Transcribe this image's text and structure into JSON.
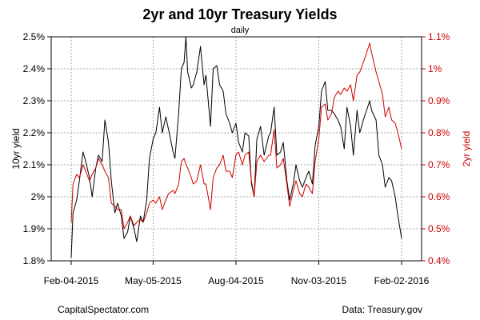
{
  "chart_data": {
    "type": "line",
    "title": "2yr and 10yr Treasury Yields",
    "subtitle": "daily",
    "ylabel_left": "10yr yield",
    "ylabel_right": "2yr yield",
    "ylim_left": [
      1.8,
      2.5
    ],
    "ylim_right": [
      0.4,
      1.1
    ],
    "yticks_left": [
      "1.8%",
      "1.9%",
      "2%",
      "2.1%",
      "2.2%",
      "2.3%",
      "2.4%",
      "2.5%"
    ],
    "yticks_right": [
      "0.4%",
      "0.5%",
      "0.6%",
      "0.7%",
      "0.8%",
      "0.9%",
      "1%",
      "1.1%"
    ],
    "xticks": [
      "Feb-04-2015",
      "May-05-2015",
      "Aug-04-2015",
      "Nov-03-2015",
      "Feb-02-2016"
    ],
    "x_range": [
      "Feb-04-2015",
      "Feb-02-2016"
    ],
    "grid": true,
    "series_colors": {
      "10yr": "#000000",
      "2yr": "#cc0000"
    },
    "series": [
      {
        "name": "10yr yield",
        "axis": "left",
        "color": "#000000",
        "points": [
          [
            "2015-02-04",
            1.81
          ],
          [
            "2015-02-06",
            1.95
          ],
          [
            "2015-02-10",
            1.99
          ],
          [
            "2015-02-13",
            2.05
          ],
          [
            "2015-02-17",
            2.14
          ],
          [
            "2015-02-20",
            2.11
          ],
          [
            "2015-02-24",
            2.06
          ],
          [
            "2015-02-27",
            2.0
          ],
          [
            "2015-03-03",
            2.09
          ],
          [
            "2015-03-06",
            2.13
          ],
          [
            "2015-03-10",
            2.11
          ],
          [
            "2015-03-13",
            2.24
          ],
          [
            "2015-03-17",
            2.17
          ],
          [
            "2015-03-20",
            2.05
          ],
          [
            "2015-03-24",
            1.95
          ],
          [
            "2015-03-27",
            1.98
          ],
          [
            "2015-03-31",
            1.94
          ],
          [
            "2015-04-03",
            1.87
          ],
          [
            "2015-04-07",
            1.89
          ],
          [
            "2015-04-10",
            1.94
          ],
          [
            "2015-04-14",
            1.9
          ],
          [
            "2015-04-17",
            1.86
          ],
          [
            "2015-04-21",
            1.94
          ],
          [
            "2015-04-24",
            1.92
          ],
          [
            "2015-04-28",
            1.99
          ],
          [
            "2015-05-01",
            2.12
          ],
          [
            "2015-05-05",
            2.18
          ],
          [
            "2015-05-08",
            2.2
          ],
          [
            "2015-05-12",
            2.28
          ],
          [
            "2015-05-15",
            2.2
          ],
          [
            "2015-05-19",
            2.25
          ],
          [
            "2015-05-22",
            2.21
          ],
          [
            "2015-05-27",
            2.14
          ],
          [
            "2015-05-29",
            2.12
          ],
          [
            "2015-06-02",
            2.26
          ],
          [
            "2015-06-05",
            2.4
          ],
          [
            "2015-06-08",
            2.42
          ],
          [
            "2015-06-10",
            2.5
          ],
          [
            "2015-06-12",
            2.39
          ],
          [
            "2015-06-16",
            2.34
          ],
          [
            "2015-06-18",
            2.35
          ],
          [
            "2015-06-22",
            2.39
          ],
          [
            "2015-06-26",
            2.47
          ],
          [
            "2015-06-30",
            2.35
          ],
          [
            "2015-07-02",
            2.38
          ],
          [
            "2015-07-07",
            2.22
          ],
          [
            "2015-07-10",
            2.4
          ],
          [
            "2015-07-14",
            2.41
          ],
          [
            "2015-07-17",
            2.35
          ],
          [
            "2015-07-21",
            2.33
          ],
          [
            "2015-07-24",
            2.26
          ],
          [
            "2015-07-28",
            2.23
          ],
          [
            "2015-07-31",
            2.2
          ],
          [
            "2015-08-04",
            2.23
          ],
          [
            "2015-08-07",
            2.17
          ],
          [
            "2015-08-11",
            2.14
          ],
          [
            "2015-08-14",
            2.2
          ],
          [
            "2015-08-18",
            2.19
          ],
          [
            "2015-08-21",
            2.04
          ],
          [
            "2015-08-24",
            2.0
          ],
          [
            "2015-08-27",
            2.18
          ],
          [
            "2015-08-31",
            2.22
          ],
          [
            "2015-09-04",
            2.13
          ],
          [
            "2015-09-09",
            2.19
          ],
          [
            "2015-09-11",
            2.2
          ],
          [
            "2015-09-15",
            2.28
          ],
          [
            "2015-09-18",
            2.13
          ],
          [
            "2015-09-22",
            2.14
          ],
          [
            "2015-09-25",
            2.17
          ],
          [
            "2015-09-29",
            2.05
          ],
          [
            "2015-10-02",
            1.99
          ],
          [
            "2015-10-06",
            2.04
          ],
          [
            "2015-10-09",
            2.1
          ],
          [
            "2015-10-13",
            2.05
          ],
          [
            "2015-10-16",
            2.03
          ],
          [
            "2015-10-20",
            2.06
          ],
          [
            "2015-10-23",
            2.08
          ],
          [
            "2015-10-27",
            2.04
          ],
          [
            "2015-10-30",
            2.16
          ],
          [
            "2015-11-03",
            2.22
          ],
          [
            "2015-11-06",
            2.33
          ],
          [
            "2015-11-10",
            2.36
          ],
          [
            "2015-11-13",
            2.27
          ],
          [
            "2015-11-17",
            2.27
          ],
          [
            "2015-11-20",
            2.26
          ],
          [
            "2015-11-24",
            2.24
          ],
          [
            "2015-11-27",
            2.22
          ],
          [
            "2015-12-01",
            2.15
          ],
          [
            "2015-12-04",
            2.28
          ],
          [
            "2015-12-08",
            2.22
          ],
          [
            "2015-12-11",
            2.13
          ],
          [
            "2015-12-15",
            2.27
          ],
          [
            "2015-12-18",
            2.2
          ],
          [
            "2015-12-22",
            2.24
          ],
          [
            "2015-12-29",
            2.3
          ],
          [
            "2015-12-31",
            2.27
          ],
          [
            "2016-01-05",
            2.24
          ],
          [
            "2016-01-08",
            2.13
          ],
          [
            "2016-01-12",
            2.1
          ],
          [
            "2016-01-15",
            2.03
          ],
          [
            "2016-01-19",
            2.06
          ],
          [
            "2016-01-22",
            2.05
          ],
          [
            "2016-01-26",
            2.0
          ],
          [
            "2016-01-29",
            1.94
          ],
          [
            "2016-02-02",
            1.87
          ]
        ]
      },
      {
        "name": "2yr yield",
        "axis": "right",
        "color": "#cc0000",
        "points": [
          [
            "2015-02-04",
            0.52
          ],
          [
            "2015-02-06",
            0.64
          ],
          [
            "2015-02-10",
            0.67
          ],
          [
            "2015-02-13",
            0.66
          ],
          [
            "2015-02-17",
            0.7
          ],
          [
            "2015-02-20",
            0.68
          ],
          [
            "2015-02-24",
            0.65
          ],
          [
            "2015-02-27",
            0.67
          ],
          [
            "2015-03-03",
            0.69
          ],
          [
            "2015-03-06",
            0.72
          ],
          [
            "2015-03-10",
            0.7
          ],
          [
            "2015-03-13",
            0.68
          ],
          [
            "2015-03-17",
            0.66
          ],
          [
            "2015-03-20",
            0.58
          ],
          [
            "2015-03-24",
            0.57
          ],
          [
            "2015-03-27",
            0.56
          ],
          [
            "2015-03-31",
            0.56
          ],
          [
            "2015-04-03",
            0.5
          ],
          [
            "2015-04-07",
            0.52
          ],
          [
            "2015-04-10",
            0.54
          ],
          [
            "2015-04-14",
            0.51
          ],
          [
            "2015-04-17",
            0.52
          ],
          [
            "2015-04-21",
            0.53
          ],
          [
            "2015-04-24",
            0.52
          ],
          [
            "2015-04-28",
            0.55
          ],
          [
            "2015-05-01",
            0.58
          ],
          [
            "2015-05-05",
            0.59
          ],
          [
            "2015-05-08",
            0.58
          ],
          [
            "2015-05-12",
            0.6
          ],
          [
            "2015-05-15",
            0.56
          ],
          [
            "2015-05-19",
            0.59
          ],
          [
            "2015-05-22",
            0.61
          ],
          [
            "2015-05-27",
            0.62
          ],
          [
            "2015-05-29",
            0.61
          ],
          [
            "2015-06-02",
            0.64
          ],
          [
            "2015-06-05",
            0.71
          ],
          [
            "2015-06-08",
            0.72
          ],
          [
            "2015-06-10",
            0.7
          ],
          [
            "2015-06-12",
            0.69
          ],
          [
            "2015-06-16",
            0.66
          ],
          [
            "2015-06-18",
            0.64
          ],
          [
            "2015-06-22",
            0.65
          ],
          [
            "2015-06-26",
            0.7
          ],
          [
            "2015-06-30",
            0.64
          ],
          [
            "2015-07-02",
            0.64
          ],
          [
            "2015-07-07",
            0.56
          ],
          [
            "2015-07-10",
            0.66
          ],
          [
            "2015-07-14",
            0.69
          ],
          [
            "2015-07-17",
            0.7
          ],
          [
            "2015-07-21",
            0.73
          ],
          [
            "2015-07-24",
            0.68
          ],
          [
            "2015-07-28",
            0.68
          ],
          [
            "2015-07-31",
            0.66
          ],
          [
            "2015-08-04",
            0.73
          ],
          [
            "2015-08-07",
            0.74
          ],
          [
            "2015-08-11",
            0.7
          ],
          [
            "2015-08-14",
            0.73
          ],
          [
            "2015-08-18",
            0.74
          ],
          [
            "2015-08-21",
            0.65
          ],
          [
            "2015-08-24",
            0.6
          ],
          [
            "2015-08-27",
            0.71
          ],
          [
            "2015-08-31",
            0.73
          ],
          [
            "2015-09-04",
            0.71
          ],
          [
            "2015-09-09",
            0.73
          ],
          [
            "2015-09-11",
            0.73
          ],
          [
            "2015-09-15",
            0.81
          ],
          [
            "2015-09-18",
            0.69
          ],
          [
            "2015-09-22",
            0.7
          ],
          [
            "2015-09-25",
            0.72
          ],
          [
            "2015-09-29",
            0.64
          ],
          [
            "2015-10-02",
            0.57
          ],
          [
            "2015-10-06",
            0.62
          ],
          [
            "2015-10-09",
            0.65
          ],
          [
            "2015-10-13",
            0.61
          ],
          [
            "2015-10-16",
            0.6
          ],
          [
            "2015-10-20",
            0.64
          ],
          [
            "2015-10-23",
            0.63
          ],
          [
            "2015-10-27",
            0.61
          ],
          [
            "2015-10-30",
            0.71
          ],
          [
            "2015-11-03",
            0.78
          ],
          [
            "2015-11-06",
            0.88
          ],
          [
            "2015-11-10",
            0.89
          ],
          [
            "2015-11-13",
            0.84
          ],
          [
            "2015-11-17",
            0.86
          ],
          [
            "2015-11-20",
            0.91
          ],
          [
            "2015-11-24",
            0.93
          ],
          [
            "2015-11-27",
            0.92
          ],
          [
            "2015-12-01",
            0.94
          ],
          [
            "2015-12-04",
            0.93
          ],
          [
            "2015-12-08",
            0.95
          ],
          [
            "2015-12-11",
            0.9
          ],
          [
            "2015-12-15",
            0.98
          ],
          [
            "2015-12-18",
            0.99
          ],
          [
            "2015-12-22",
            1.02
          ],
          [
            "2015-12-29",
            1.08
          ],
          [
            "2015-12-31",
            1.05
          ],
          [
            "2016-01-05",
            0.99
          ],
          [
            "2016-01-08",
            0.96
          ],
          [
            "2016-01-12",
            0.92
          ],
          [
            "2016-01-15",
            0.85
          ],
          [
            "2016-01-19",
            0.88
          ],
          [
            "2016-01-22",
            0.84
          ],
          [
            "2016-01-26",
            0.83
          ],
          [
            "2016-01-29",
            0.8
          ],
          [
            "2016-02-02",
            0.75
          ]
        ]
      }
    ]
  },
  "footer": {
    "left": "CapitalSpectator.com",
    "right": "Data: Treasury.gov"
  }
}
